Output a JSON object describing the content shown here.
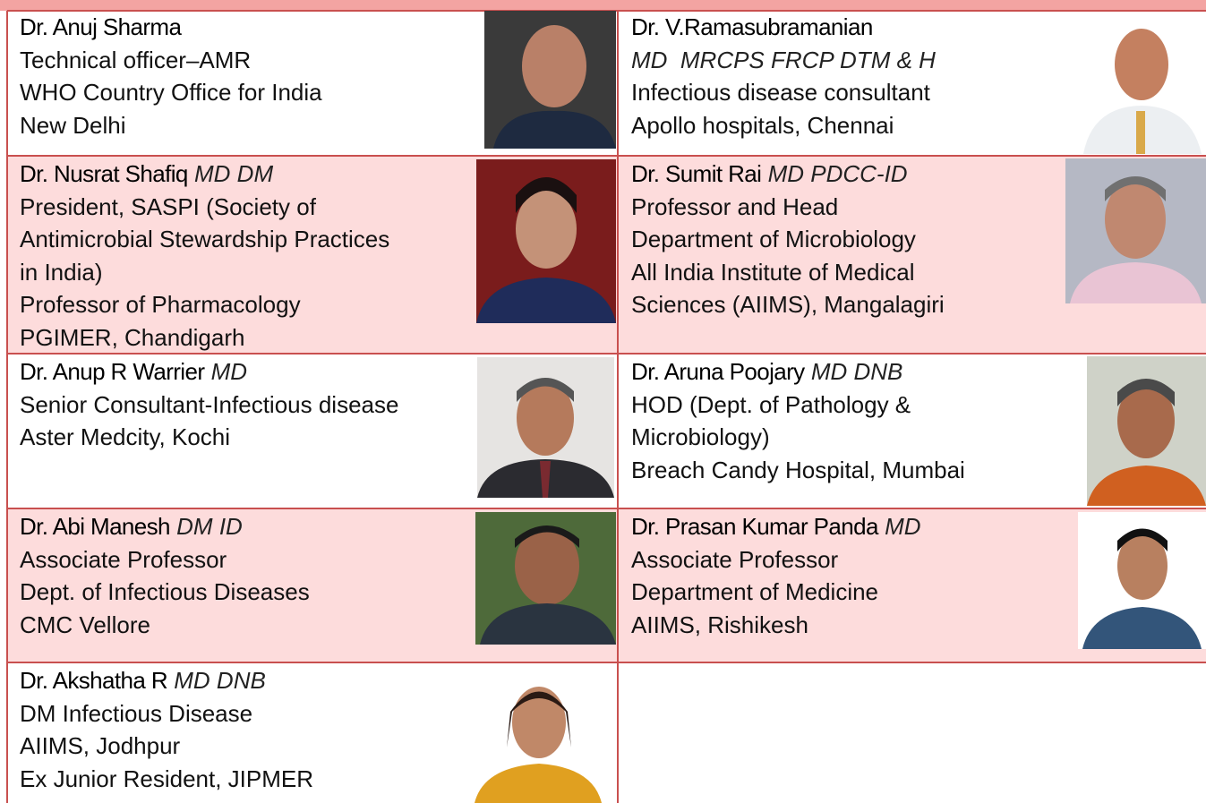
{
  "speakers": [
    {
      "name": "Dr. Anuj Sharma",
      "lines": [
        "Technical officer–AMR",
        "WHO Country Office for India",
        "New Delhi"
      ]
    },
    {
      "name": "Dr. V.Ramasubramanian",
      "qualifications": "MD  MRCPS FRCP DTM & H",
      "lines": [
        "Infectious disease consultant",
        "Apollo hospitals, Chennai"
      ]
    },
    {
      "name": "Dr. Nusrat Shafiq",
      "qualifications": "MD DM",
      "lines": [
        "President, SASPI (Society of",
        "Antimicrobial Stewardship Practices",
        "in India)",
        "Professor of Pharmacology",
        "PGIMER, Chandigarh"
      ]
    },
    {
      "name": "Dr. Sumit Rai",
      "qualifications": "MD PDCC-ID",
      "lines": [
        "Professor and Head",
        "Department of Microbiology",
        "All India Institute of Medical",
        "Sciences (AIIMS), Mangalagiri"
      ]
    },
    {
      "name": "Dr. Anup R Warrier",
      "qualifications": "MD",
      "lines": [
        "Senior Consultant-Infectious disease",
        "Aster Medcity, Kochi"
      ]
    },
    {
      "name": "Dr. Aruna Poojary",
      "qualifications": "MD DNB",
      "lines": [
        "HOD (Dept. of Pathology &",
        "Microbiology)",
        "Breach Candy Hospital, Mumbai"
      ]
    },
    {
      "name": "Dr. Abi Manesh",
      "qualifications": "DM ID",
      "lines": [
        "Associate Professor",
        "Dept. of Infectious Diseases",
        "CMC Vellore"
      ]
    },
    {
      "name": "Dr. Prasan Kumar Panda",
      "qualifications": "MD",
      "lines": [
        "Associate Professor",
        "Department of Medicine",
        "AIIMS, Rishikesh"
      ]
    },
    {
      "name": "Dr. Akshatha R",
      "qualifications": "MD DNB",
      "lines": [
        "DM Infectious Disease",
        "AIIMS, Jodhpur",
        "Ex Junior Resident, JIPMER"
      ]
    }
  ]
}
